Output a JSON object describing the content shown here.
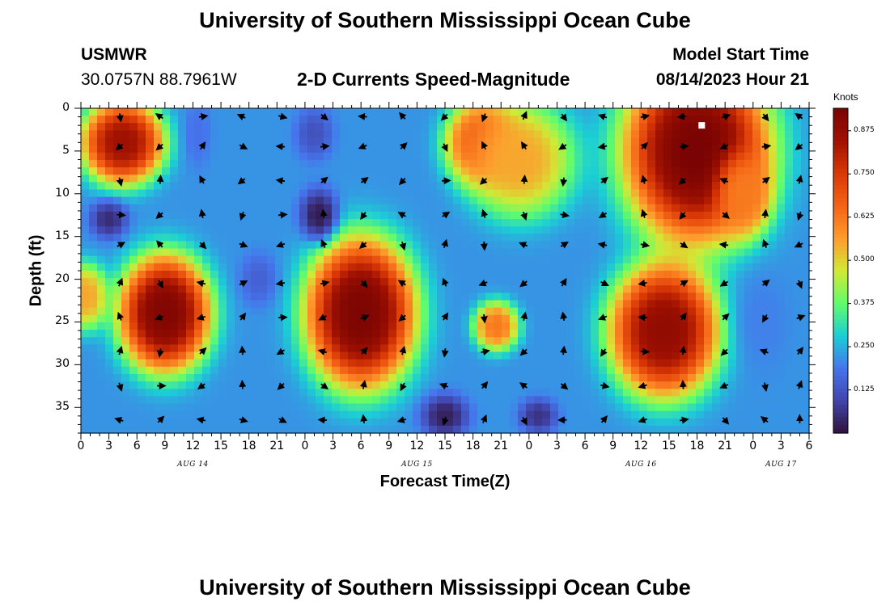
{
  "header": {
    "title": "University of Southern Mississippi Ocean Cube",
    "station_id": "USMWR",
    "coordinates": "30.0757N  88.7961W",
    "plot_title": "2-D Currents Speed-Magnitude",
    "model_label": "Model Start Time",
    "model_time": "08/14/2023 Hour 21"
  },
  "footer": {
    "title_repeat": "University of Southern Mississippi Ocean Cube"
  },
  "colorbar": {
    "unit_label": "Knots",
    "tick_labels": [
      "0.875",
      "0.750",
      "0.625",
      "0.500",
      "0.375",
      "0.250",
      "0.125"
    ],
    "tick_values": [
      0.875,
      0.75,
      0.625,
      0.5,
      0.375,
      0.25,
      0.125
    ],
    "range": [
      0.0,
      0.94
    ]
  },
  "chart_data": {
    "type": "heatmap",
    "title": "2-D Currents Speed-Magnitude",
    "xlabel": "Forecast Time(Z)",
    "ylabel": "Depth (ft)",
    "x_tick_labels": [
      "0",
      "3",
      "6",
      "9",
      "12",
      "15",
      "18",
      "21",
      "0",
      "3",
      "6",
      "9",
      "12",
      "15",
      "18",
      "21",
      "0",
      "3",
      "6",
      "9",
      "12",
      "15",
      "18",
      "21",
      "0",
      "3",
      "6"
    ],
    "x_hours": [
      0,
      3,
      6,
      9,
      12,
      15,
      18,
      21,
      24,
      27,
      30,
      33,
      36,
      39,
      42,
      45,
      48,
      51,
      54,
      57,
      60,
      63,
      66,
      69,
      72,
      75,
      78
    ],
    "x_range": [
      0,
      78
    ],
    "date_labels": [
      {
        "label": "AUG 14",
        "hour": 12
      },
      {
        "label": "AUG 15",
        "hour": 36
      },
      {
        "label": "AUG 16",
        "hour": 60
      },
      {
        "label": "AUG 17",
        "hour": 75
      }
    ],
    "y_tick_labels": [
      "0",
      "5",
      "10",
      "15",
      "20",
      "25",
      "30",
      "35"
    ],
    "y_values": [
      0,
      5,
      10,
      15,
      20,
      25,
      30,
      35
    ],
    "y_range": [
      0,
      38
    ],
    "y_inverted": true,
    "units": "Knots",
    "speed_blobs": [
      {
        "hour": 4.5,
        "depth": 4,
        "peak": 0.85,
        "rx": 4.5,
        "ry": 5
      },
      {
        "hour": 9,
        "depth": 24,
        "peak": 0.92,
        "rx": 5,
        "ry": 7
      },
      {
        "hour": 30,
        "depth": 24,
        "peak": 0.93,
        "rx": 6,
        "ry": 9
      },
      {
        "hour": 43,
        "depth": 4,
        "peak": 0.72,
        "rx": 4,
        "ry": 5
      },
      {
        "hour": 47,
        "depth": 6,
        "peak": 0.55,
        "rx": 6,
        "ry": 7
      },
      {
        "hour": 44.5,
        "depth": 25.5,
        "peak": 0.62,
        "rx": 2.5,
        "ry": 3
      },
      {
        "hour": 66,
        "depth": 5,
        "peak": 0.94,
        "rx": 8,
        "ry": 11
      },
      {
        "hour": 62.5,
        "depth": 26,
        "peak": 0.88,
        "rx": 6,
        "ry": 8
      },
      {
        "hour": 71,
        "depth": 10,
        "peak": 0.62,
        "rx": 3,
        "ry": 5
      },
      {
        "hour": 0.5,
        "depth": 22,
        "peak": 0.55,
        "rx": 2.5,
        "ry": 4
      }
    ],
    "slow_blobs": [
      {
        "hour": 3,
        "depth": 13,
        "peak": 0.05,
        "rx": 2,
        "ry": 2.2
      },
      {
        "hour": 25.5,
        "depth": 12.5,
        "peak": 0.02,
        "rx": 2,
        "ry": 3
      },
      {
        "hour": 25,
        "depth": 3,
        "peak": 0.12,
        "rx": 2,
        "ry": 3
      },
      {
        "hour": 39,
        "depth": 36,
        "peak": 0.03,
        "rx": 2.5,
        "ry": 2.5
      },
      {
        "hour": 49,
        "depth": 36,
        "peak": 0.06,
        "rx": 2,
        "ry": 2
      },
      {
        "hour": 19,
        "depth": 20,
        "peak": 0.15,
        "rx": 2,
        "ry": 3
      },
      {
        "hour": 12.5,
        "depth": 3,
        "peak": 0.18,
        "rx": 1.5,
        "ry": 4
      },
      {
        "hour": 73,
        "depth": 25,
        "peak": 0.2,
        "rx": 3,
        "ry": 6
      }
    ],
    "background_speed": 0.22,
    "arrow_columns": [
      4.2,
      8.5,
      13,
      17.3,
      21.5,
      26,
      30.3,
      34.5,
      39,
      43.2,
      47.5,
      51.7,
      56,
      60.3,
      64.5,
      69,
      73.3,
      77
    ],
    "arrow_rows": [
      0.5,
      4,
      8,
      12,
      15.5,
      20,
      24,
      28,
      32,
      36
    ],
    "marker": {
      "hour": 66.5,
      "depth": 2
    }
  }
}
